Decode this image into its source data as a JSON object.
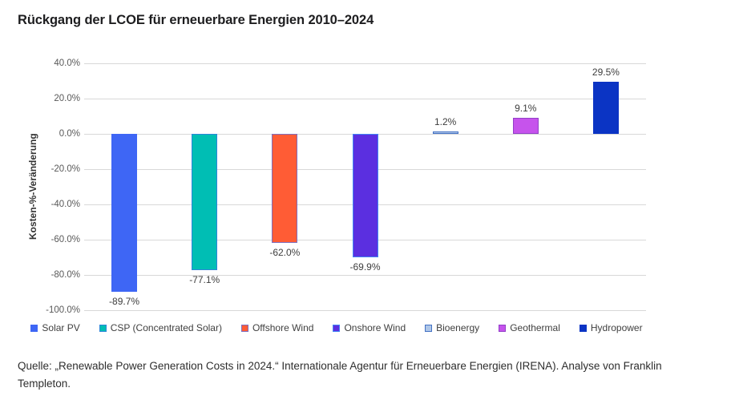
{
  "chart_data": {
    "type": "bar",
    "title": "Rückgang der LCOE für erneuerbare Energien 2010–2024",
    "ylabel": "Kosten-%-Veränderung",
    "ylim": [
      -100,
      40
    ],
    "ytick_step": 20,
    "ytick_labels": [
      "40.0%",
      "20.0%",
      "0.0%",
      "-20.0%",
      "-40.0%",
      "-60.0%",
      "-80.0%",
      "-100.0%"
    ],
    "grid": true,
    "legend_position": "bottom",
    "categories": [
      "Solar PV",
      "CSP (Concentrated Solar)",
      "Offshore Wind",
      "Onshore Wind",
      "Bioenergy",
      "Geothermal",
      "Hydropower"
    ],
    "values": [
      -89.7,
      -77.1,
      -62.0,
      -69.9,
      1.2,
      9.1,
      29.5
    ],
    "value_labels": [
      "-89.7%",
      "-77.1%",
      "-62.0%",
      "-69.9%",
      "1.2%",
      "9.1%",
      "29.5%"
    ],
    "bar_colors": [
      "#3E66F5",
      "#00BEB4",
      "#FF5C35",
      "#5B2FE0",
      "#AEC6E8",
      "#C653EC",
      "#0B34C4"
    ],
    "bar_borders": [
      "#3E66F5",
      "#2E86D9",
      "#7D6FC0",
      "#4285F4",
      "#4472C4",
      "#9240C8",
      "#0B34C4"
    ],
    "grid_color": "#d8d8d8"
  },
  "footer": {
    "source": "Quelle: „Renewable Power Generation Costs in 2024.“ Internationale Agentur für Erneuerbare Energien (IRENA). Analyse von Franklin Templeton."
  }
}
